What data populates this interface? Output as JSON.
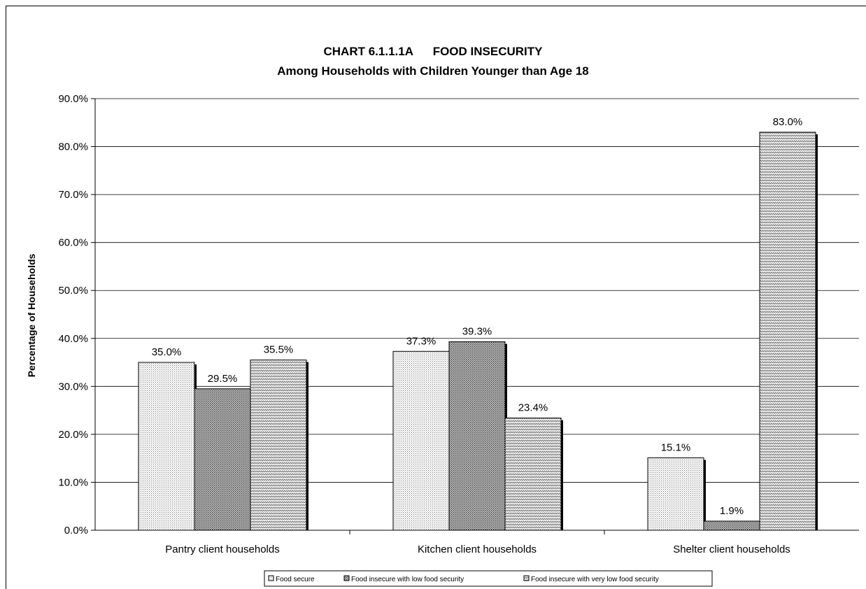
{
  "chart_data": {
    "type": "bar",
    "title": "CHART 6.1.1.1A      FOOD INSECURITY",
    "subtitle": "Among Households with Children Younger than Age 18",
    "xlabel": "",
    "ylabel": "Percentage of Households",
    "ylim": [
      0,
      90
    ],
    "yticks": [
      "0.0%",
      "10.0%",
      "20.0%",
      "30.0%",
      "40.0%",
      "50.0%",
      "60.0%",
      "70.0%",
      "80.0%",
      "90.0%"
    ],
    "grid": true,
    "legend_position": "bottom",
    "categories": [
      "Pantry client households",
      "Kitchen client households",
      "Shelter client households"
    ],
    "series": [
      {
        "name": "Food secure",
        "values": [
          35.0,
          37.3,
          15.1
        ],
        "labels": [
          "35.0%",
          "37.3%",
          "15.1%"
        ],
        "pattern": "fine-dots",
        "color": "#d9d9d9"
      },
      {
        "name": "Food insecure with low food security",
        "values": [
          29.5,
          39.3,
          1.9
        ],
        "labels": [
          "29.5%",
          "39.3%",
          "1.9%"
        ],
        "pattern": "dense-grid",
        "color": "#8c8c8c"
      },
      {
        "name": "Food insecure with very low food security",
        "values": [
          35.5,
          23.4,
          83.0
        ],
        "labels": [
          "35.5%",
          "23.4%",
          "83.0%"
        ],
        "pattern": "zigzag",
        "color": "#bfbfbf"
      }
    ]
  }
}
